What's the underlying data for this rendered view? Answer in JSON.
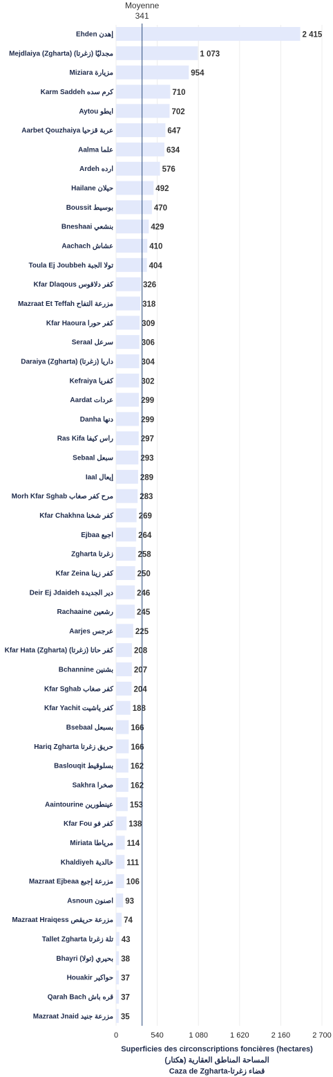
{
  "chart_data": {
    "type": "bar",
    "orientation": "horizontal",
    "categories": [
      "Ehden إهدن",
      "Mejdlaiya (Zgharta) مجدليّا (زغرتا)",
      "Miziara مزيارة",
      "Karm Saddeh كرم سده",
      "Aytou ايطو",
      "Aarbet Qouzhaiya عربة قزحيا",
      "Aalma علما",
      "Ardeh ارده",
      "Hailane حيلان",
      "Boussit بوسيط",
      "Bneshaai بنشعي",
      "Aachach عشاش",
      "Toula Ej Joubbeh تولا الجبة",
      "Kfar Dlaqous كفر دلاقوس",
      "Mazraat Et Teffah مزرعة التفاح",
      "Kfar Haoura كفر حورا",
      "Seraal سرعل",
      "Daraiya (Zgharta) داريا (زغرتا)",
      "Kefraiya كفريا",
      "Aardat عردات",
      "Danha دنها",
      "Ras Kifa راس كيفا",
      "Sebaal سبعل",
      "Iaal إيعال",
      "Morh Kfar Sghab مرح كفر صغاب",
      "Kfar Chakhna كفر شخنا",
      "Ejbaa اجبع",
      "Zgharta زغرتا",
      "Kfar Zeina كفر زينا",
      "Deir Ej Jdaideh دير الجديدة",
      "Rachaaine رشعين",
      "Aarjes عرجس",
      "Kfar Hata (Zgharta) كفر حاتا (زغرتا)",
      "Bchannine بشنين",
      "Kfar Sghab كفر صغاب",
      "Kfar Yachit كفر ياشيت",
      "Bsebaal بسبعل",
      "Hariq Zgharta حريق زغرتا",
      "Baslouqit بسلوقيط",
      "Sakhra صخرا",
      "Aaintourine عينطورين",
      "Kfar Fou كفر فو",
      "Miriata مرياطا",
      "Khaldiyeh خالدية",
      "Mazraat Ejbeaa مزرعة إجبع",
      "Asnoun اصنون",
      "Mazraat Hraiqess مزرعة حريقص",
      "Tallet Zgharta تلة زغرتا",
      "Bhayri (تولا) بحيري",
      "Houakir حواكير",
      "Qarah Bach قره باش",
      "Mazraat Jnaid مزرعة جنيد"
    ],
    "values": [
      2415,
      1073,
      954,
      710,
      702,
      647,
      634,
      576,
      492,
      470,
      429,
      410,
      404,
      326,
      318,
      309,
      306,
      304,
      302,
      299,
      299,
      297,
      293,
      289,
      283,
      269,
      264,
      258,
      250,
      246,
      245,
      225,
      208,
      207,
      204,
      188,
      166,
      166,
      162,
      162,
      153,
      138,
      114,
      111,
      106,
      93,
      74,
      43,
      38,
      37,
      37,
      35
    ],
    "value_labels": [
      "2 415",
      "1 073",
      "954",
      "710",
      "702",
      "647",
      "634",
      "576",
      "492",
      "470",
      "429",
      "410",
      "404",
      "326",
      "318",
      "309",
      "306",
      "304",
      "302",
      "299",
      "299",
      "297",
      "293",
      "289",
      "283",
      "269",
      "264",
      "258",
      "250",
      "246",
      "245",
      "225",
      "208",
      "207",
      "204",
      "188",
      "166",
      "166",
      "162",
      "162",
      "153",
      "138",
      "114",
      "111",
      "106",
      "93",
      "74",
      "43",
      "38",
      "37",
      "37",
      "35"
    ],
    "xlim": [
      0,
      2700
    ],
    "xticks": [
      0,
      540,
      1080,
      1620,
      2160,
      2700
    ],
    "xtick_labels": [
      "0",
      "540",
      "1 080",
      "1 620",
      "2 160",
      "2 700"
    ],
    "mean": {
      "label": "Moyenne",
      "value": 341,
      "value_label": "341"
    },
    "xlabel_lines": [
      "Superficies des circonscriptions foncières (hectares)",
      "المساحة المناطق العقارية (هكتار)",
      "Caza de Zgharta-قضاء زغرتا"
    ],
    "grid": "vertical",
    "colors": {
      "bar": "#e3e9fb",
      "mean_line": "#2a4a7a",
      "grid": "#ececec"
    }
  }
}
